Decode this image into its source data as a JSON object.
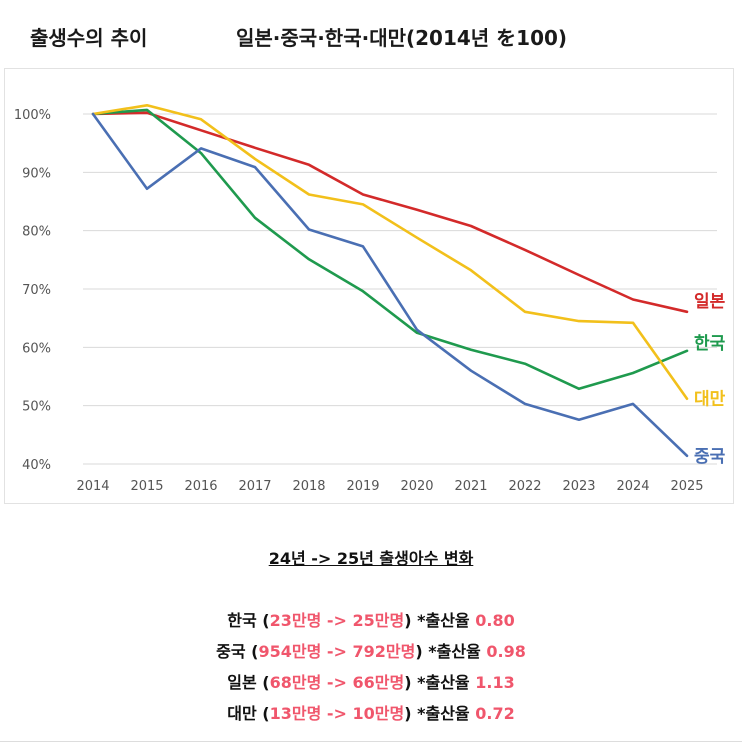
{
  "header": {
    "left_title": "출생수의 추이",
    "right_title": "일본·중국·한국·대만(2014년 を100)"
  },
  "chart_data": {
    "type": "line",
    "title": "출생수의 추이 일본·중국·한국·대만(2014년 を100)",
    "categories": [
      "2014",
      "2015",
      "2016",
      "2017",
      "2018",
      "2019",
      "2020",
      "2021",
      "2022",
      "2023",
      "2024",
      "2025"
    ],
    "y_tick_labels": [
      "100%",
      "90%",
      "80%",
      "70%",
      "60%",
      "50%",
      "40%"
    ],
    "y_ticks": [
      100,
      90,
      80,
      70,
      60,
      50,
      40
    ],
    "ylim": [
      40,
      100
    ],
    "grid": true,
    "series": [
      {
        "name": "일본",
        "color": "#d32a2a",
        "values": [
          100,
          100.2,
          97.2,
          94.2,
          91.3,
          86.2,
          83.6,
          80.8,
          76.7,
          72.4,
          68.2,
          66.1
        ]
      },
      {
        "name": "한국",
        "color": "#1f9a4e",
        "values": [
          100,
          100.7,
          93.3,
          82.2,
          75.1,
          69.6,
          62.5,
          59.6,
          57.2,
          52.9,
          55.6,
          59.4
        ]
      },
      {
        "name": "대만",
        "color": "#f2c01b",
        "values": [
          100,
          101.5,
          99.1,
          92.3,
          86.2,
          84.5,
          78.8,
          73.2,
          66.1,
          64.5,
          64.2,
          51.2
        ]
      },
      {
        "name": "중국",
        "color": "#4a6fb3",
        "values": [
          100,
          87.2,
          94.1,
          90.9,
          80.2,
          77.3,
          63.0,
          56.0,
          50.3,
          47.6,
          50.3,
          41.4
        ]
      }
    ]
  },
  "summary": {
    "caption": "24년 -> 25년 출생아수 변화",
    "rows": [
      {
        "country": "한국",
        "change": "23만명 -> 25만명",
        "label": "*출산율",
        "rate": "0.80"
      },
      {
        "country": "중국",
        "change": "954만명 -> 792만명",
        "label": "*출산율",
        "rate": "0.98"
      },
      {
        "country": "일본",
        "change": "68만명 -> 66만명",
        "label": "*출산율",
        "rate": "1.13"
      },
      {
        "country": "대만",
        "change": "13만명 -> 10만명",
        "label": "*출산율",
        "rate": "0.72"
      }
    ]
  }
}
